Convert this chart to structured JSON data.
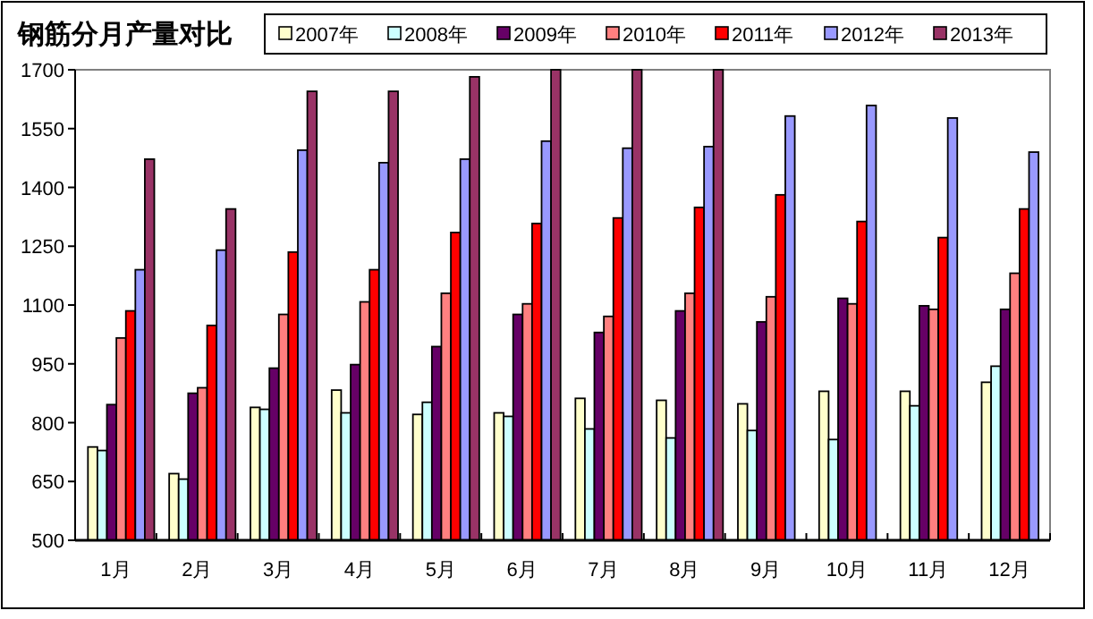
{
  "chart_data": {
    "type": "bar",
    "title": "钢筋分月产量对比",
    "categories": [
      "1月",
      "2月",
      "3月",
      "4月",
      "5月",
      "6月",
      "7月",
      "8月",
      "9月",
      "10月",
      "11月",
      "12月"
    ],
    "series": [
      {
        "name": "2007年",
        "color": "#ffffcc",
        "values": [
          738,
          670,
          839,
          883,
          821,
          825,
          862,
          857,
          848,
          880,
          880,
          903
        ]
      },
      {
        "name": "2008年",
        "color": "#ccffff",
        "values": [
          729,
          656,
          834,
          825,
          852,
          816,
          784,
          761,
          780,
          757,
          843,
          944
        ]
      },
      {
        "name": "2009年",
        "color": "#660066",
        "values": [
          846,
          875,
          939,
          948,
          994,
          1076,
          1030,
          1085,
          1057,
          1117,
          1098,
          1089
        ]
      },
      {
        "name": "2010年",
        "color": "#ff8080",
        "values": [
          1016,
          889,
          1076,
          1108,
          1130,
          1103,
          1071,
          1130,
          1121,
          1103,
          1089,
          1181
        ]
      },
      {
        "name": "2011年",
        "color": "#ff0000",
        "values": [
          1085,
          1048,
          1235,
          1190,
          1285,
          1308,
          1322,
          1349,
          1381,
          1313,
          1272,
          1345
        ]
      },
      {
        "name": "2012年",
        "color": "#9999ff",
        "values": [
          1190,
          1240,
          1495,
          1463,
          1472,
          1518,
          1500,
          1504,
          1582,
          1609,
          1577,
          1490
        ]
      },
      {
        "name": "2013年",
        "color": "#993366",
        "values": [
          1472,
          1345,
          1645,
          1645,
          1682,
          1700,
          1700,
          1700,
          null,
          null,
          null,
          null
        ]
      }
    ],
    "ylim": [
      500,
      1700
    ],
    "yticks": [
      500,
      650,
      800,
      950,
      1100,
      1250,
      1400,
      1550,
      1700
    ],
    "grid": false,
    "legend": "top"
  }
}
